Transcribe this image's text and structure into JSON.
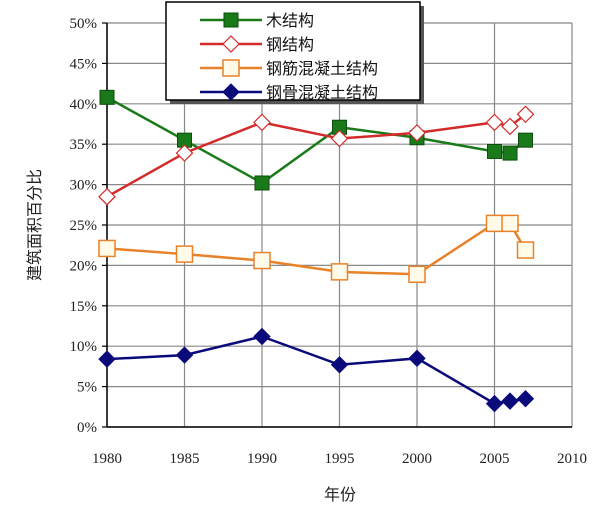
{
  "chart_data": {
    "type": "line",
    "title": "",
    "xlabel": "年份",
    "ylabel": "建筑面积百分比",
    "xlim": [
      1980,
      2010
    ],
    "ylim": [
      0,
      50
    ],
    "x_ticks": [
      "1980",
      "1985",
      "1990",
      "1995",
      "2000",
      "2005",
      "2010"
    ],
    "y_ticks": [
      "0%",
      "5%",
      "10%",
      "15%",
      "20%",
      "25%",
      "30%",
      "35%",
      "40%",
      "45%",
      "50%"
    ],
    "grid": true,
    "legend_position": "top-center",
    "x": [
      1980,
      1985,
      1990,
      1995,
      2000,
      2005,
      2006,
      2007
    ],
    "series": [
      {
        "name": "木结构",
        "color": "#1a7a1a",
        "marker": "filled-square",
        "values": [
          40.8,
          35.5,
          30.2,
          37.1,
          35.8,
          34.1,
          33.9,
          35.5
        ]
      },
      {
        "name": "钢结构",
        "color": "#d42a2a",
        "marker": "hollow-diamond",
        "values": [
          28.5,
          33.9,
          37.7,
          35.7,
          36.4,
          37.7,
          37.2,
          38.7
        ]
      },
      {
        "name": "钢筋混凝土结构",
        "color": "#e8822a",
        "marker": "hollow-square",
        "values": [
          22.1,
          21.4,
          20.6,
          19.2,
          18.9,
          25.2,
          25.2,
          21.9
        ]
      },
      {
        "name": "钢骨混凝土结构",
        "color": "#0a0a7a",
        "marker": "filled-diamond",
        "values": [
          8.4,
          8.9,
          11.2,
          7.7,
          8.5,
          2.9,
          3.2,
          3.5
        ]
      }
    ]
  }
}
